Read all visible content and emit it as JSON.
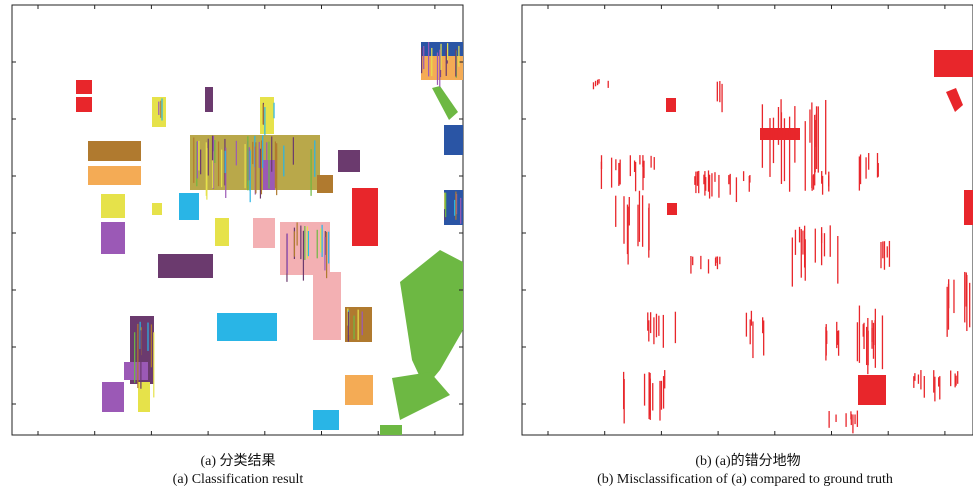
{
  "panels": [
    {
      "caption_cn": "(a) 分类结果",
      "caption_en": "(a) Classification result"
    },
    {
      "caption_cn": "(b) (a)的错分地物",
      "caption_en": "(b) Misclassification of (a) compared to ground truth"
    }
  ]
}
